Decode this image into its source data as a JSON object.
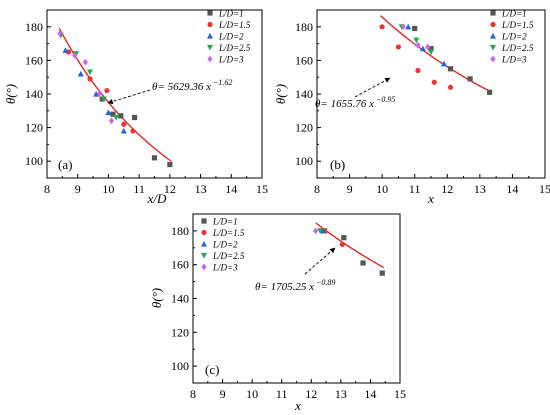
{
  "chart_data": [
    {
      "type": "scatter",
      "panel": "(a)",
      "xlabel": "x/D",
      "ylabel": "θ(°)",
      "xlim": [
        8,
        15
      ],
      "ylim": [
        90,
        190
      ],
      "xticks": [
        8,
        9,
        10,
        11,
        12,
        13,
        14,
        15
      ],
      "yticks": [
        100,
        120,
        140,
        160,
        180
      ],
      "legend_position": "top-right",
      "equation": "θ= 5629.36 x^−1.62",
      "equation_main": "θ= 5629.36 x",
      "equation_exp": "−1.62",
      "fit": {
        "a": 5629.36,
        "b": -1.62,
        "x_from": 8.4,
        "x_to": 12.05
      },
      "series": [
        {
          "name": "L/D=1",
          "marker": "square",
          "color": "#555555",
          "points": [
            [
              9.8,
              137
            ],
            [
              10.15,
              128
            ],
            [
              10.4,
              127
            ],
            [
              10.85,
              126
            ],
            [
              11.5,
              102
            ],
            [
              12.0,
              98
            ]
          ]
        },
        {
          "name": "L/D=1.5",
          "marker": "circle",
          "color": "#ee3333",
          "points": [
            [
              8.7,
              165
            ],
            [
              9.4,
              149
            ],
            [
              9.95,
              142
            ],
            [
              10.5,
              122
            ],
            [
              10.8,
              118
            ]
          ]
        },
        {
          "name": "L/D=2",
          "marker": "triangle-up",
          "color": "#2266dd",
          "points": [
            [
              8.6,
              166
            ],
            [
              9.1,
              152
            ],
            [
              9.6,
              140
            ],
            [
              10.0,
              129
            ],
            [
              10.5,
              118
            ]
          ]
        },
        {
          "name": "L/D=2.5",
          "marker": "triangle-down",
          "color": "#22aa44",
          "points": [
            [
              8.45,
              175
            ],
            [
              8.95,
              164
            ],
            [
              9.4,
              153
            ],
            [
              9.85,
              137
            ],
            [
              10.25,
              126
            ]
          ]
        },
        {
          "name": "L/D=3",
          "marker": "diamond",
          "color": "#cc66ee",
          "points": [
            [
              8.42,
              176
            ],
            [
              8.9,
              163
            ],
            [
              9.25,
              159
            ],
            [
              9.7,
              140
            ],
            [
              10.1,
              124
            ]
          ]
        }
      ]
    },
    {
      "type": "scatter",
      "panel": "(b)",
      "xlabel": "x",
      "ylabel": "θ(°)",
      "xlim": [
        8,
        15
      ],
      "ylim": [
        90,
        190
      ],
      "xticks": [
        8,
        9,
        10,
        11,
        12,
        13,
        14,
        15
      ],
      "yticks": [
        100,
        120,
        140,
        160,
        180
      ],
      "legend_position": "top-right",
      "equation": "θ= 1655.76 x^−0.95",
      "equation_main": "θ= 1655.76 x",
      "equation_exp": "−0.95",
      "fit": {
        "a": 1655.76,
        "b": -0.95,
        "x_from": 9.95,
        "x_to": 13.35
      },
      "series": [
        {
          "name": "L/D=1",
          "marker": "square",
          "color": "#555555",
          "points": [
            [
              11.0,
              179
            ],
            [
              11.5,
              167
            ],
            [
              12.1,
              155
            ],
            [
              12.7,
              149
            ],
            [
              13.3,
              141
            ]
          ]
        },
        {
          "name": "L/D=1.5",
          "marker": "circle",
          "color": "#ee3333",
          "points": [
            [
              10.0,
              180
            ],
            [
              10.5,
              168
            ],
            [
              11.1,
              154
            ],
            [
              11.6,
              147
            ],
            [
              12.1,
              144
            ]
          ]
        },
        {
          "name": "L/D=2",
          "marker": "triangle-up",
          "color": "#2266dd",
          "points": [
            [
              10.8,
              180
            ],
            [
              11.25,
              167
            ],
            [
              11.9,
              158
            ]
          ]
        },
        {
          "name": "L/D=2.5",
          "marker": "triangle-down",
          "color": "#22aa44",
          "points": [
            [
              10.6,
              180
            ],
            [
              11.05,
              172
            ],
            [
              11.5,
              165
            ]
          ]
        },
        {
          "name": "L/D=3",
          "marker": "diamond",
          "color": "#cc66ee",
          "points": [
            [
              10.65,
              180
            ],
            [
              11.1,
              169
            ],
            [
              11.4,
              168
            ]
          ]
        }
      ]
    },
    {
      "type": "scatter",
      "panel": "(c)",
      "xlabel": "x",
      "ylabel": "θ(°)",
      "xlim": [
        8,
        15
      ],
      "ylim": [
        90,
        190
      ],
      "xticks": [
        8,
        9,
        10,
        11,
        12,
        13,
        14,
        15
      ],
      "yticks": [
        100,
        120,
        140,
        160,
        180
      ],
      "legend_position": "top-left",
      "equation": "θ= 1705.25 x^−0.89",
      "equation_main": "θ= 1705.25 x",
      "equation_exp": "−0.89",
      "fit": {
        "a": 1705.25,
        "b": -0.89,
        "x_from": 12.15,
        "x_to": 14.45
      },
      "series": [
        {
          "name": "L/D=1",
          "marker": "square",
          "color": "#555555",
          "points": [
            [
              12.45,
              180
            ],
            [
              13.1,
              176
            ],
            [
              13.75,
              161
            ],
            [
              14.4,
              155
            ]
          ]
        },
        {
          "name": "L/D=1.5",
          "marker": "circle",
          "color": "#ee3333",
          "points": [
            [
              12.45,
              180
            ],
            [
              13.05,
              172
            ]
          ]
        },
        {
          "name": "L/D=2",
          "marker": "triangle-up",
          "color": "#2266dd",
          "points": [
            [
              12.4,
              180
            ]
          ]
        },
        {
          "name": "L/D=2.5",
          "marker": "triangle-down",
          "color": "#22aa44",
          "points": [
            [
              12.3,
              180
            ]
          ]
        },
        {
          "name": "L/D=3",
          "marker": "diamond",
          "color": "#cc66ee",
          "points": [
            [
              12.15,
              180
            ]
          ]
        }
      ]
    }
  ]
}
